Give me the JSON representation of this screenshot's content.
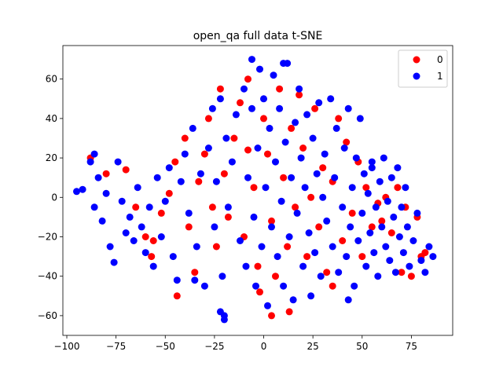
{
  "chart_data": {
    "type": "scatter",
    "title": "open_qa full data t-SNE",
    "xlabel": "",
    "ylabel": "",
    "xlim": [
      -102,
      96
    ],
    "ylim": [
      -70,
      77
    ],
    "xticks": [
      -100,
      -75,
      -50,
      -25,
      0,
      25,
      50,
      75
    ],
    "yticks": [
      -60,
      -40,
      -20,
      0,
      20,
      40,
      60
    ],
    "xtick_labels": [
      "−100",
      "−75",
      "−50",
      "−25",
      "0",
      "25",
      "50",
      "75"
    ],
    "ytick_labels": [
      "−60",
      "−40",
      "−20",
      "0",
      "20",
      "40",
      "60"
    ],
    "grid": false,
    "legend_position": "top-right",
    "series": [
      {
        "name": "0",
        "color": "#ff0000",
        "points": [
          [
            -88,
            20
          ],
          [
            -80,
            12
          ],
          [
            -70,
            14
          ],
          [
            -65,
            -5
          ],
          [
            -60,
            -20
          ],
          [
            -57,
            -30
          ],
          [
            -52,
            -8
          ],
          [
            -48,
            2
          ],
          [
            -45,
            18
          ],
          [
            -40,
            30
          ],
          [
            -38,
            -15
          ],
          [
            -35,
            -38
          ],
          [
            -33,
            8
          ],
          [
            -30,
            22
          ],
          [
            -28,
            40
          ],
          [
            -26,
            -5
          ],
          [
            -24,
            -25
          ],
          [
            -22,
            55
          ],
          [
            -20,
            12
          ],
          [
            -18,
            -10
          ],
          [
            -15,
            30
          ],
          [
            -12,
            48
          ],
          [
            -10,
            -20
          ],
          [
            -8,
            60
          ],
          [
            -5,
            5
          ],
          [
            -3,
            -35
          ],
          [
            0,
            40
          ],
          [
            2,
            22
          ],
          [
            4,
            -12
          ],
          [
            6,
            -40
          ],
          [
            8,
            55
          ],
          [
            10,
            10
          ],
          [
            12,
            -25
          ],
          [
            14,
            35
          ],
          [
            16,
            -5
          ],
          [
            18,
            52
          ],
          [
            20,
            25
          ],
          [
            22,
            -30
          ],
          [
            24,
            0
          ],
          [
            26,
            45
          ],
          [
            28,
            -15
          ],
          [
            30,
            15
          ],
          [
            32,
            -38
          ],
          [
            35,
            8
          ],
          [
            38,
            40
          ],
          [
            40,
            -22
          ],
          [
            42,
            28
          ],
          [
            45,
            -8
          ],
          [
            48,
            18
          ],
          [
            50,
            -30
          ],
          [
            52,
            5
          ],
          [
            55,
            -15
          ],
          [
            58,
            -3
          ],
          [
            60,
            -12
          ],
          [
            62,
            0
          ],
          [
            65,
            -18
          ],
          [
            68,
            5
          ],
          [
            70,
            -38
          ],
          [
            72,
            -5
          ],
          [
            75,
            -40
          ],
          [
            78,
            -10
          ],
          [
            80,
            -30
          ],
          [
            82,
            -28
          ],
          [
            -44,
            -50
          ],
          [
            4,
            -60
          ],
          [
            13,
            -58
          ],
          [
            -8,
            24
          ],
          [
            -2,
            -48
          ],
          [
            35,
            -45
          ],
          [
            -56,
            -22
          ]
        ]
      },
      {
        "name": "1",
        "color": "#0000ff",
        "points": [
          [
            -92,
            4
          ],
          [
            -88,
            18
          ],
          [
            -86,
            -5
          ],
          [
            -84,
            10
          ],
          [
            -82,
            -12
          ],
          [
            -80,
            2
          ],
          [
            -78,
            -25
          ],
          [
            -76,
            -33
          ],
          [
            -74,
            18
          ],
          [
            -72,
            -2
          ],
          [
            -70,
            -18
          ],
          [
            -68,
            -10
          ],
          [
            -66,
            -22
          ],
          [
            -64,
            5
          ],
          [
            -62,
            -15
          ],
          [
            -60,
            -28
          ],
          [
            -58,
            -5
          ],
          [
            -56,
            -35
          ],
          [
            -54,
            10
          ],
          [
            -52,
            -20
          ],
          [
            -50,
            -2
          ],
          [
            -48,
            15
          ],
          [
            -46,
            -30
          ],
          [
            -44,
            -42
          ],
          [
            -42,
            8
          ],
          [
            -40,
            22
          ],
          [
            -38,
            -8
          ],
          [
            -36,
            35
          ],
          [
            -34,
            -25
          ],
          [
            -32,
            12
          ],
          [
            -30,
            -45
          ],
          [
            -28,
            25
          ],
          [
            -26,
            45
          ],
          [
            -25,
            -15
          ],
          [
            -24,
            8
          ],
          [
            -22,
            50
          ],
          [
            -21,
            -40
          ],
          [
            -20,
            -60
          ],
          [
            -19,
            30
          ],
          [
            -18,
            -5
          ],
          [
            -16,
            18
          ],
          [
            -14,
            42
          ],
          [
            -12,
            -22
          ],
          [
            -10,
            55
          ],
          [
            -9,
            -35
          ],
          [
            -8,
            10
          ],
          [
            -6,
            45
          ],
          [
            -5,
            -10
          ],
          [
            -4,
            -45
          ],
          [
            -3,
            25
          ],
          [
            -2,
            65
          ],
          [
            -1,
            -25
          ],
          [
            0,
            50
          ],
          [
            1,
            5
          ],
          [
            2,
            -55
          ],
          [
            3,
            35
          ],
          [
            4,
            -15
          ],
          [
            5,
            62
          ],
          [
            6,
            18
          ],
          [
            7,
            -30
          ],
          [
            8,
            45
          ],
          [
            9,
            -2
          ],
          [
            10,
            -45
          ],
          [
            11,
            28
          ],
          [
            12,
            68
          ],
          [
            13,
            -20
          ],
          [
            14,
            10
          ],
          [
            15,
            -52
          ],
          [
            16,
            38
          ],
          [
            17,
            -8
          ],
          [
            18,
            55
          ],
          [
            19,
            20
          ],
          [
            20,
            -35
          ],
          [
            21,
            5
          ],
          [
            22,
            42
          ],
          [
            23,
            -18
          ],
          [
            24,
            -50
          ],
          [
            25,
            30
          ],
          [
            26,
            -28
          ],
          [
            27,
            12
          ],
          [
            28,
            48
          ],
          [
            29,
            -40
          ],
          [
            30,
            0
          ],
          [
            31,
            22
          ],
          [
            32,
            -12
          ],
          [
            34,
            50
          ],
          [
            35,
            -25
          ],
          [
            36,
            10
          ],
          [
            37,
            35
          ],
          [
            38,
            -38
          ],
          [
            40,
            -5
          ],
          [
            41,
            25
          ],
          [
            42,
            -30
          ],
          [
            43,
            45
          ],
          [
            44,
            -15
          ],
          [
            45,
            5
          ],
          [
            46,
            -45
          ],
          [
            47,
            20
          ],
          [
            48,
            -22
          ],
          [
            49,
            40
          ],
          [
            50,
            -8
          ],
          [
            51,
            12
          ],
          [
            52,
            -35
          ],
          [
            53,
            2
          ],
          [
            54,
            -18
          ],
          [
            55,
            15
          ],
          [
            56,
            -28
          ],
          [
            57,
            -5
          ],
          [
            58,
            -40
          ],
          [
            59,
            8
          ],
          [
            60,
            -15
          ],
          [
            61,
            20
          ],
          [
            62,
            -25
          ],
          [
            63,
            -2
          ],
          [
            64,
            -32
          ],
          [
            65,
            10
          ],
          [
            66,
            -10
          ],
          [
            67,
            -38
          ],
          [
            68,
            15
          ],
          [
            69,
            -20
          ],
          [
            70,
            -5
          ],
          [
            71,
            -28
          ],
          [
            72,
            5
          ],
          [
            73,
            -15
          ],
          [
            74,
            -35
          ],
          [
            76,
            -22
          ],
          [
            78,
            -8
          ],
          [
            80,
            -32
          ],
          [
            82,
            -38
          ],
          [
            84,
            -25
          ],
          [
            86,
            -30
          ],
          [
            -20,
            -62
          ],
          [
            -22,
            -58
          ],
          [
            43,
            -52
          ],
          [
            -6,
            70
          ],
          [
            10,
            68
          ],
          [
            -95,
            3
          ],
          [
            -86,
            22
          ],
          [
            -35,
            -42
          ],
          [
            55,
            18
          ]
        ]
      }
    ]
  }
}
